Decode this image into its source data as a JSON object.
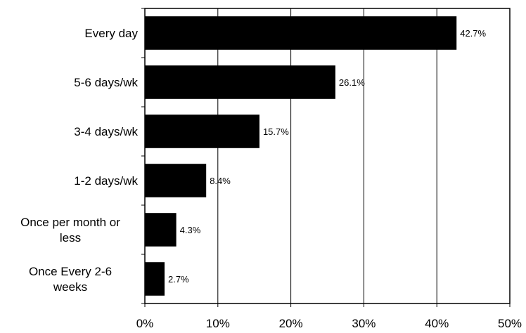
{
  "chart_data": {
    "type": "bar",
    "orientation": "horizontal",
    "title": "",
    "xlabel": "",
    "ylabel": "",
    "categories": [
      "Every day",
      "5-6 days/wk",
      "3-4 days/wk",
      "1-2 days/wk",
      "Once per month or less",
      "Once Every 2-6 weeks"
    ],
    "category_lines": [
      [
        "Every day"
      ],
      [
        "5-6 days/wk"
      ],
      [
        "3-4 days/wk"
      ],
      [
        "1-2 days/wk"
      ],
      [
        "Once per month or",
        "less"
      ],
      [
        "Once Every 2-6",
        "weeks"
      ]
    ],
    "values": [
      42.7,
      26.1,
      15.7,
      8.4,
      4.3,
      2.7
    ],
    "data_labels": [
      "42.7%",
      "26.1%",
      "15.7%",
      "8.4%",
      "4.3%",
      "2.7%"
    ],
    "xlim": [
      0,
      50
    ],
    "xticks": [
      0,
      10,
      20,
      30,
      40,
      50
    ],
    "xtick_labels": [
      "0%",
      "10%",
      "20%",
      "30%",
      "40%",
      "50%"
    ],
    "grid": "vertical",
    "legend": "none",
    "bar_color": "#000000"
  }
}
